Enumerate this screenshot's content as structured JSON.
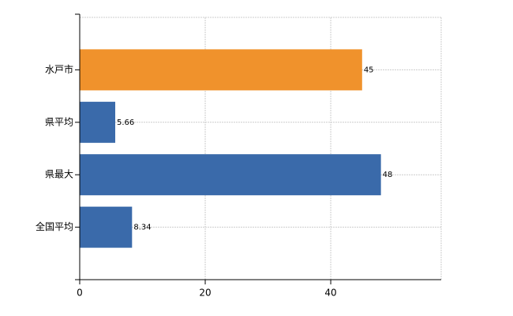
{
  "chart_data": {
    "type": "bar",
    "orientation": "horizontal",
    "categories": [
      "水戸市",
      "県平均",
      "県最大",
      "全国平均"
    ],
    "values": [
      45,
      5.66,
      48,
      8.34
    ],
    "colors": [
      "#f0922c",
      "#3a6aaa",
      "#3a6aaa",
      "#3a6aaa"
    ],
    "xlim": [
      0,
      57.6
    ],
    "xticks": [
      0,
      20,
      40
    ],
    "grid": true
  }
}
